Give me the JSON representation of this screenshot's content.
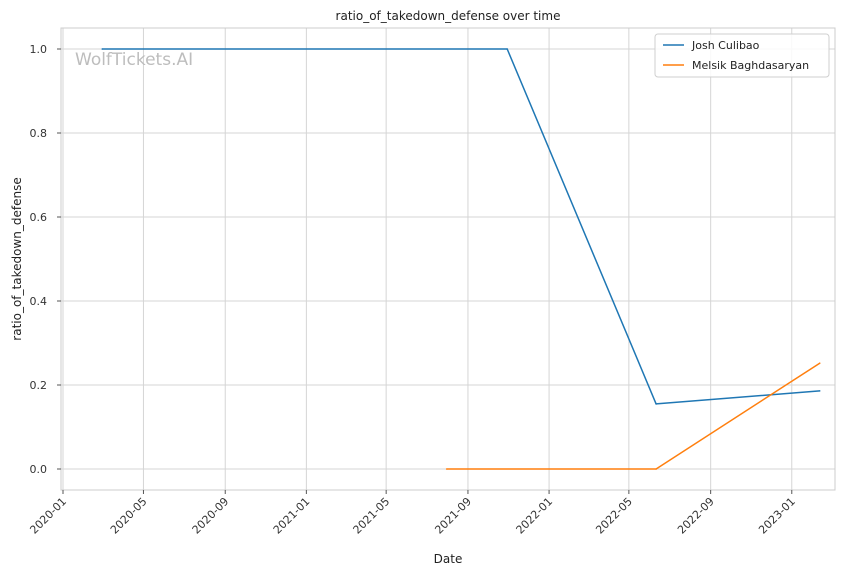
{
  "chart_data": {
    "type": "line",
    "title": "ratio_of_takedown_defense over time",
    "xlabel": "Date",
    "ylabel": "ratio_of_takedown_defense",
    "watermark": "WolfTickets.AI",
    "x_ticks": [
      "2020-01",
      "2020-05",
      "2020-09",
      "2021-01",
      "2021-05",
      "2021-09",
      "2022-01",
      "2022-05",
      "2022-09",
      "2023-01"
    ],
    "y_ticks": [
      "0.0",
      "0.2",
      "0.4",
      "0.6",
      "0.8",
      "1.0"
    ],
    "ylim": [
      -0.05,
      1.05
    ],
    "xlim": [
      "2019-12-29",
      "2023-03-07"
    ],
    "grid": true,
    "legend_position": "top-right",
    "series": [
      {
        "name": "Josh Culibao",
        "color": "#1f77b4",
        "x": [
          "2020-02-29",
          "2021-10-30",
          "2022-06-11",
          "2023-02-12"
        ],
        "y": [
          1.0,
          1.0,
          0.155,
          0.186
        ]
      },
      {
        "name": "Melsik Baghdasaryan",
        "color": "#ff7f0e",
        "x": [
          "2021-07-31",
          "2022-06-11",
          "2023-02-12"
        ],
        "y": [
          0.0,
          0.0,
          0.252
        ]
      }
    ]
  }
}
